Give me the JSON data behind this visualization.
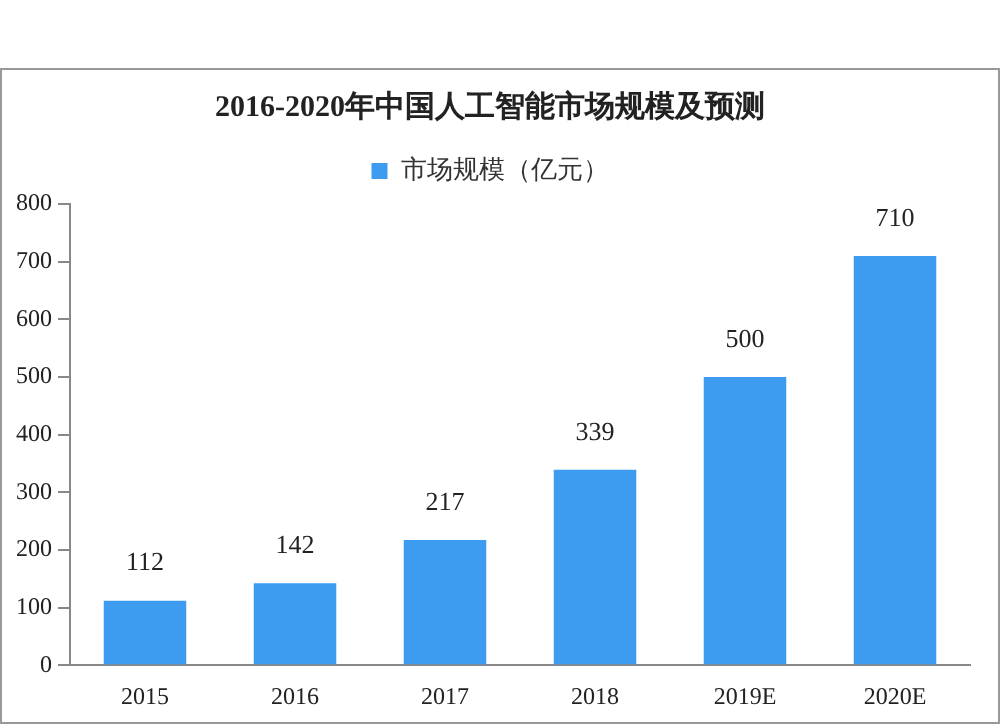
{
  "chart_data": {
    "type": "bar",
    "title": "2016-2020年中国人工智能市场规模及预测",
    "categories": [
      "2015",
      "2016",
      "2017",
      "2018",
      "2019E",
      "2020E"
    ],
    "series": [
      {
        "name": "市场规模（亿元）",
        "color": "#3d9cf0",
        "values": [
          112,
          142,
          217,
          339,
          500,
          710
        ]
      }
    ],
    "ylim": [
      0,
      800
    ],
    "yticks": [
      0,
      100,
      200,
      300,
      400,
      500,
      600,
      700,
      800
    ],
    "data_labels": true,
    "legend": "top",
    "grid": false
  }
}
